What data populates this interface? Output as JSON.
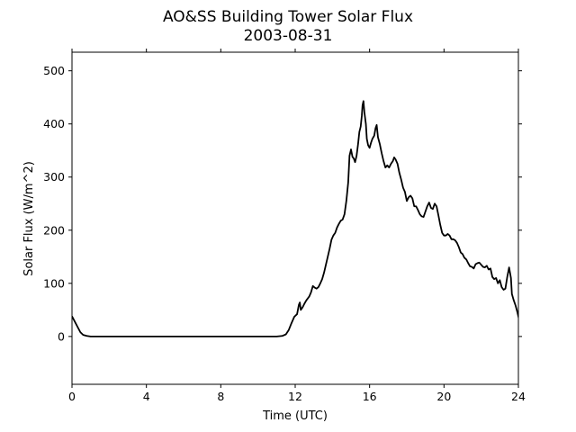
{
  "chart_data": {
    "type": "line",
    "title": "AO&SS Building Tower Solar Flux",
    "subtitle": "2003-08-31",
    "xlabel": "Time (UTC)",
    "ylabel": "Solar Flux (W/m^2)",
    "xlim": [
      0,
      24
    ],
    "ylim": [
      -90,
      535
    ],
    "xticks": [
      0,
      4,
      8,
      12,
      16,
      20,
      24
    ],
    "yticks": [
      0,
      100,
      200,
      300,
      400,
      500
    ],
    "grid": false,
    "series": [
      {
        "color": "#000000",
        "points": [
          [
            0.0,
            38
          ],
          [
            0.15,
            28
          ],
          [
            0.3,
            18
          ],
          [
            0.45,
            8
          ],
          [
            0.6,
            3
          ],
          [
            0.8,
            1
          ],
          [
            1.0,
            0
          ],
          [
            2.0,
            0
          ],
          [
            4.0,
            0
          ],
          [
            6.0,
            0
          ],
          [
            8.0,
            0
          ],
          [
            10.0,
            0
          ],
          [
            11.0,
            0
          ],
          [
            11.3,
            1
          ],
          [
            11.5,
            4
          ],
          [
            11.65,
            12
          ],
          [
            11.8,
            25
          ],
          [
            11.95,
            37
          ],
          [
            12.1,
            42
          ],
          [
            12.2,
            60
          ],
          [
            12.25,
            64
          ],
          [
            12.3,
            50
          ],
          [
            12.4,
            55
          ],
          [
            12.5,
            62
          ],
          [
            12.6,
            68
          ],
          [
            12.75,
            75
          ],
          [
            12.85,
            83
          ],
          [
            12.95,
            95
          ],
          [
            13.05,
            92
          ],
          [
            13.15,
            90
          ],
          [
            13.25,
            93
          ],
          [
            13.35,
            100
          ],
          [
            13.45,
            108
          ],
          [
            13.55,
            120
          ],
          [
            13.65,
            135
          ],
          [
            13.75,
            150
          ],
          [
            13.85,
            165
          ],
          [
            13.95,
            182
          ],
          [
            14.05,
            190
          ],
          [
            14.15,
            195
          ],
          [
            14.25,
            205
          ],
          [
            14.35,
            212
          ],
          [
            14.45,
            218
          ],
          [
            14.55,
            220
          ],
          [
            14.65,
            230
          ],
          [
            14.75,
            255
          ],
          [
            14.85,
            290
          ],
          [
            14.92,
            340
          ],
          [
            15.0,
            352
          ],
          [
            15.08,
            338
          ],
          [
            15.15,
            335
          ],
          [
            15.22,
            328
          ],
          [
            15.3,
            340
          ],
          [
            15.38,
            362
          ],
          [
            15.45,
            385
          ],
          [
            15.52,
            395
          ],
          [
            15.58,
            415
          ],
          [
            15.62,
            435
          ],
          [
            15.67,
            443
          ],
          [
            15.72,
            422
          ],
          [
            15.8,
            400
          ],
          [
            15.85,
            372
          ],
          [
            15.92,
            360
          ],
          [
            16.0,
            355
          ],
          [
            16.08,
            365
          ],
          [
            16.15,
            372
          ],
          [
            16.25,
            378
          ],
          [
            16.32,
            392
          ],
          [
            16.38,
            398
          ],
          [
            16.45,
            375
          ],
          [
            16.55,
            362
          ],
          [
            16.65,
            345
          ],
          [
            16.75,
            330
          ],
          [
            16.85,
            318
          ],
          [
            16.95,
            322
          ],
          [
            17.05,
            318
          ],
          [
            17.15,
            325
          ],
          [
            17.25,
            330
          ],
          [
            17.32,
            337
          ],
          [
            17.4,
            333
          ],
          [
            17.5,
            325
          ],
          [
            17.6,
            308
          ],
          [
            17.7,
            295
          ],
          [
            17.8,
            280
          ],
          [
            17.9,
            272
          ],
          [
            18.0,
            255
          ],
          [
            18.1,
            262
          ],
          [
            18.2,
            265
          ],
          [
            18.3,
            260
          ],
          [
            18.4,
            245
          ],
          [
            18.5,
            245
          ],
          [
            18.6,
            238
          ],
          [
            18.7,
            230
          ],
          [
            18.8,
            226
          ],
          [
            18.9,
            225
          ],
          [
            19.0,
            235
          ],
          [
            19.1,
            245
          ],
          [
            19.2,
            252
          ],
          [
            19.3,
            242
          ],
          [
            19.4,
            240
          ],
          [
            19.5,
            250
          ],
          [
            19.6,
            245
          ],
          [
            19.7,
            228
          ],
          [
            19.8,
            210
          ],
          [
            19.9,
            195
          ],
          [
            20.0,
            190
          ],
          [
            20.1,
            190
          ],
          [
            20.2,
            193
          ],
          [
            20.3,
            190
          ],
          [
            20.4,
            183
          ],
          [
            20.5,
            183
          ],
          [
            20.6,
            181
          ],
          [
            20.7,
            176
          ],
          [
            20.8,
            168
          ],
          [
            20.9,
            158
          ],
          [
            21.0,
            155
          ],
          [
            21.1,
            148
          ],
          [
            21.2,
            145
          ],
          [
            21.3,
            138
          ],
          [
            21.4,
            132
          ],
          [
            21.5,
            131
          ],
          [
            21.6,
            128
          ],
          [
            21.7,
            136
          ],
          [
            21.8,
            138
          ],
          [
            21.9,
            139
          ],
          [
            22.0,
            135
          ],
          [
            22.1,
            131
          ],
          [
            22.2,
            130
          ],
          [
            22.3,
            133
          ],
          [
            22.4,
            126
          ],
          [
            22.5,
            128
          ],
          [
            22.6,
            112
          ],
          [
            22.7,
            108
          ],
          [
            22.8,
            110
          ],
          [
            22.9,
            100
          ],
          [
            23.0,
            106
          ],
          [
            23.1,
            93
          ],
          [
            23.2,
            88
          ],
          [
            23.3,
            90
          ],
          [
            23.4,
            112
          ],
          [
            23.5,
            130
          ],
          [
            23.6,
            110
          ],
          [
            23.65,
            80
          ],
          [
            23.75,
            68
          ],
          [
            23.85,
            58
          ],
          [
            23.95,
            45
          ],
          [
            24.05,
            30
          ],
          [
            24.15,
            25
          ],
          [
            24.25,
            22
          ],
          [
            24.35,
            18
          ],
          [
            24.45,
            16
          ],
          [
            24.5,
            15
          ]
        ]
      }
    ]
  }
}
